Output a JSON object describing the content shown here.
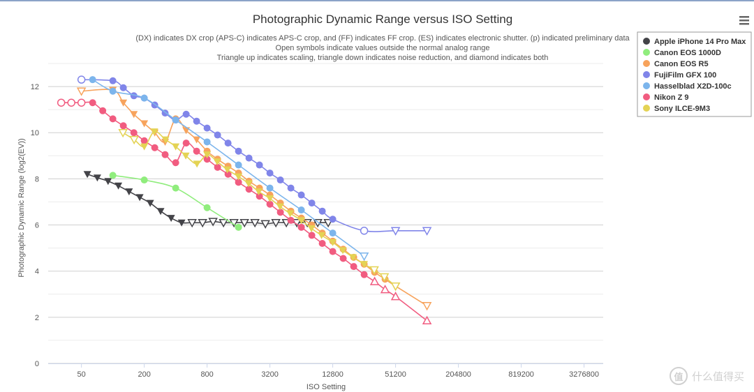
{
  "menu": {
    "icon": "hamburger-menu-icon"
  },
  "watermark": {
    "badge": "值",
    "text": "什么值得买"
  },
  "chart_data": {
    "type": "line",
    "title": "Photographic Dynamic Range versus ISO Setting",
    "subtitle_lines": [
      "(DX) indicates DX crop (APS-C) indicates APS-C crop, and (FF) indicates FF crop. (ES) indicates electronic shutter. (p) indicated preliminary data",
      "Open symbols indicate values outside the normal analog range",
      "Triangle up indicates scaling, triangle down indicates noise reduction, and diamond indicates both"
    ],
    "xlabel": "ISO Setting",
    "ylabel": "Photographic Dynamic Range (log2(EV))",
    "x_scale": "log2",
    "xlim": [
      24,
      5000000
    ],
    "ylim": [
      0,
      13
    ],
    "x_ticks": [
      50,
      200,
      800,
      3200,
      12800,
      51200,
      204800,
      819200,
      3276800
    ],
    "y_ticks": [
      0,
      2,
      4,
      6,
      8,
      10,
      12
    ],
    "grid": true,
    "legend_position": "top-right",
    "series": [
      {
        "name": "Apple iPhone 14 Pro Max",
        "color": "#434348",
        "points": [
          {
            "x": 57,
            "y": 8.2,
            "m": "tri-down"
          },
          {
            "x": 71,
            "y": 8.05,
            "m": "tri-down"
          },
          {
            "x": 90,
            "y": 7.9,
            "m": "tri-down"
          },
          {
            "x": 113,
            "y": 7.7,
            "m": "tri-down"
          },
          {
            "x": 143,
            "y": 7.45,
            "m": "tri-down"
          },
          {
            "x": 181,
            "y": 7.2,
            "m": "tri-down"
          },
          {
            "x": 228,
            "y": 6.95,
            "m": "tri-down"
          },
          {
            "x": 287,
            "y": 6.6,
            "m": "tri-down"
          },
          {
            "x": 362,
            "y": 6.3,
            "m": "tri-down"
          },
          {
            "x": 456,
            "y": 6.1,
            "m": "tri-down"
          },
          {
            "x": 575,
            "y": 6.1,
            "m": "tri-down-open"
          },
          {
            "x": 724,
            "y": 6.1,
            "m": "tri-down-open"
          },
          {
            "x": 912,
            "y": 6.15,
            "m": "tri-down-open"
          },
          {
            "x": 1149,
            "y": 6.1,
            "m": "tri-down-open"
          },
          {
            "x": 1448,
            "y": 6.1,
            "m": "tri-down-open"
          },
          {
            "x": 1825,
            "y": 6.1,
            "m": "tri-down-open"
          },
          {
            "x": 2299,
            "y": 6.1,
            "m": "tri-down-open"
          },
          {
            "x": 2897,
            "y": 6.05,
            "m": "tri-down-open"
          },
          {
            "x": 3650,
            "y": 6.1,
            "m": "tri-down-open"
          },
          {
            "x": 4598,
            "y": 6.1,
            "m": "tri-down-open"
          },
          {
            "x": 5793,
            "y": 6.1,
            "m": "tri-down-open"
          },
          {
            "x": 7298,
            "y": 6.1,
            "m": "tri-down-open"
          },
          {
            "x": 9195,
            "y": 6.1,
            "m": "tri-down-open"
          },
          {
            "x": 11585,
            "y": 6.1,
            "m": "tri-down-open"
          }
        ]
      },
      {
        "name": "Canon EOS 1000D",
        "color": "#90ed7d",
        "points": [
          {
            "x": 100,
            "y": 8.15,
            "m": "circle"
          },
          {
            "x": 200,
            "y": 7.95,
            "m": "circle"
          },
          {
            "x": 400,
            "y": 7.6,
            "m": "circle"
          },
          {
            "x": 800,
            "y": 6.75,
            "m": "circle"
          },
          {
            "x": 1600,
            "y": 5.9,
            "m": "circle"
          }
        ]
      },
      {
        "name": "Canon EOS R5",
        "color": "#f7a35c",
        "points": [
          {
            "x": 50,
            "y": 11.8,
            "m": "tri-down-open"
          },
          {
            "x": 100,
            "y": 11.85,
            "m": "tri-down"
          },
          {
            "x": 126,
            "y": 11.3,
            "m": "tri-down"
          },
          {
            "x": 159,
            "y": 10.8,
            "m": "tri-down"
          },
          {
            "x": 200,
            "y": 10.4,
            "m": "tri-down"
          },
          {
            "x": 252,
            "y": 10.0,
            "m": "tri-down"
          },
          {
            "x": 317,
            "y": 9.6,
            "m": "tri-down"
          },
          {
            "x": 400,
            "y": 10.6,
            "m": "circle"
          },
          {
            "x": 504,
            "y": 10.1,
            "m": "tri-down"
          },
          {
            "x": 635,
            "y": 9.7,
            "m": "tri-down"
          },
          {
            "x": 800,
            "y": 9.2,
            "m": "circle"
          },
          {
            "x": 1008,
            "y": 8.85,
            "m": "circle"
          },
          {
            "x": 1270,
            "y": 8.55,
            "m": "circle"
          },
          {
            "x": 1600,
            "y": 8.25,
            "m": "circle"
          },
          {
            "x": 2016,
            "y": 7.9,
            "m": "circle"
          },
          {
            "x": 2540,
            "y": 7.6,
            "m": "circle"
          },
          {
            "x": 3200,
            "y": 7.3,
            "m": "circle"
          },
          {
            "x": 4032,
            "y": 6.95,
            "m": "circle"
          },
          {
            "x": 5080,
            "y": 6.6,
            "m": "circle"
          },
          {
            "x": 6400,
            "y": 6.3,
            "m": "circle"
          },
          {
            "x": 8064,
            "y": 6.0,
            "m": "circle"
          },
          {
            "x": 10159,
            "y": 5.65,
            "m": "circle"
          },
          {
            "x": 12800,
            "y": 5.3,
            "m": "circle"
          },
          {
            "x": 16127,
            "y": 4.95,
            "m": "circle"
          },
          {
            "x": 20319,
            "y": 4.6,
            "m": "circle"
          },
          {
            "x": 25600,
            "y": 4.3,
            "m": "circle"
          },
          {
            "x": 32254,
            "y": 3.95,
            "m": "circle"
          },
          {
            "x": 40637,
            "y": 3.65,
            "m": "circle"
          },
          {
            "x": 51200,
            "y": 3.35,
            "m": "tri-down-open"
          },
          {
            "x": 102400,
            "y": 2.5,
            "m": "tri-down-open"
          }
        ]
      },
      {
        "name": "FujiFilm GFX 100",
        "color": "#8085e9",
        "points": [
          {
            "x": 50,
            "y": 12.3,
            "m": "circle-open"
          },
          {
            "x": 100,
            "y": 12.25,
            "m": "circle"
          },
          {
            "x": 126,
            "y": 11.95,
            "m": "circle"
          },
          {
            "x": 159,
            "y": 11.6,
            "m": "circle"
          },
          {
            "x": 200,
            "y": 11.5,
            "m": "circle"
          },
          {
            "x": 252,
            "y": 11.2,
            "m": "circle"
          },
          {
            "x": 317,
            "y": 10.85,
            "m": "circle"
          },
          {
            "x": 400,
            "y": 10.55,
            "m": "circle"
          },
          {
            "x": 504,
            "y": 10.8,
            "m": "circle"
          },
          {
            "x": 635,
            "y": 10.5,
            "m": "circle"
          },
          {
            "x": 800,
            "y": 10.2,
            "m": "circle"
          },
          {
            "x": 1008,
            "y": 9.9,
            "m": "circle"
          },
          {
            "x": 1270,
            "y": 9.55,
            "m": "circle"
          },
          {
            "x": 1600,
            "y": 9.2,
            "m": "circle"
          },
          {
            "x": 2016,
            "y": 8.9,
            "m": "circle"
          },
          {
            "x": 2540,
            "y": 8.6,
            "m": "circle"
          },
          {
            "x": 3200,
            "y": 8.25,
            "m": "circle"
          },
          {
            "x": 4032,
            "y": 7.95,
            "m": "circle"
          },
          {
            "x": 5080,
            "y": 7.6,
            "m": "circle"
          },
          {
            "x": 6400,
            "y": 7.3,
            "m": "circle"
          },
          {
            "x": 8064,
            "y": 6.95,
            "m": "circle"
          },
          {
            "x": 10159,
            "y": 6.6,
            "m": "circle"
          },
          {
            "x": 12800,
            "y": 6.25,
            "m": "circle"
          },
          {
            "x": 25600,
            "y": 5.75,
            "m": "circle-open"
          },
          {
            "x": 51200,
            "y": 5.75,
            "m": "tri-down-open"
          },
          {
            "x": 102400,
            "y": 5.75,
            "m": "tri-down-open"
          }
        ]
      },
      {
        "name": "Hasselblad X2D-100c",
        "color": "#7cb5ec",
        "points": [
          {
            "x": 64,
            "y": 12.3,
            "m": "circle"
          },
          {
            "x": 100,
            "y": 11.8,
            "m": "circle"
          },
          {
            "x": 200,
            "y": 11.5,
            "m": "circle"
          },
          {
            "x": 400,
            "y": 10.55,
            "m": "circle"
          },
          {
            "x": 800,
            "y": 9.6,
            "m": "circle"
          },
          {
            "x": 1600,
            "y": 8.6,
            "m": "circle"
          },
          {
            "x": 3200,
            "y": 7.6,
            "m": "circle"
          },
          {
            "x": 6400,
            "y": 6.65,
            "m": "circle"
          },
          {
            "x": 12800,
            "y": 5.65,
            "m": "circle"
          },
          {
            "x": 25600,
            "y": 4.65,
            "m": "tri-down-open"
          }
        ]
      },
      {
        "name": "Nikon Z 9",
        "color": "#f15c80",
        "points": [
          {
            "x": 32,
            "y": 11.3,
            "m": "circle-open"
          },
          {
            "x": 40,
            "y": 11.3,
            "m": "circle-open"
          },
          {
            "x": 50,
            "y": 11.3,
            "m": "circle-open"
          },
          {
            "x": 64,
            "y": 11.3,
            "m": "circle"
          },
          {
            "x": 80,
            "y": 10.95,
            "m": "circle"
          },
          {
            "x": 100,
            "y": 10.6,
            "m": "circle"
          },
          {
            "x": 126,
            "y": 10.3,
            "m": "circle"
          },
          {
            "x": 159,
            "y": 10.0,
            "m": "circle"
          },
          {
            "x": 200,
            "y": 9.65,
            "m": "circle"
          },
          {
            "x": 252,
            "y": 9.35,
            "m": "circle"
          },
          {
            "x": 317,
            "y": 9.05,
            "m": "circle"
          },
          {
            "x": 400,
            "y": 8.7,
            "m": "circle"
          },
          {
            "x": 504,
            "y": 9.55,
            "m": "circle"
          },
          {
            "x": 635,
            "y": 9.2,
            "m": "circle"
          },
          {
            "x": 800,
            "y": 8.85,
            "m": "circle"
          },
          {
            "x": 1008,
            "y": 8.5,
            "m": "circle"
          },
          {
            "x": 1270,
            "y": 8.2,
            "m": "circle"
          },
          {
            "x": 1600,
            "y": 7.85,
            "m": "circle"
          },
          {
            "x": 2016,
            "y": 7.55,
            "m": "circle"
          },
          {
            "x": 2540,
            "y": 7.25,
            "m": "circle"
          },
          {
            "x": 3200,
            "y": 6.9,
            "m": "circle"
          },
          {
            "x": 4032,
            "y": 6.55,
            "m": "circle"
          },
          {
            "x": 5080,
            "y": 6.2,
            "m": "circle"
          },
          {
            "x": 6400,
            "y": 5.9,
            "m": "circle"
          },
          {
            "x": 8064,
            "y": 5.55,
            "m": "circle"
          },
          {
            "x": 10159,
            "y": 5.2,
            "m": "circle"
          },
          {
            "x": 12800,
            "y": 4.85,
            "m": "circle"
          },
          {
            "x": 16127,
            "y": 4.55,
            "m": "circle"
          },
          {
            "x": 20319,
            "y": 4.2,
            "m": "circle"
          },
          {
            "x": 25600,
            "y": 3.85,
            "m": "circle"
          },
          {
            "x": 32254,
            "y": 3.55,
            "m": "tri-up-open"
          },
          {
            "x": 40637,
            "y": 3.2,
            "m": "tri-up-open"
          },
          {
            "x": 51200,
            "y": 2.9,
            "m": "tri-up-open"
          },
          {
            "x": 102400,
            "y": 1.85,
            "m": "tri-up-open"
          }
        ]
      },
      {
        "name": "Sony ILCE-9M3",
        "color": "#e4d354",
        "points": [
          {
            "x": 125,
            "y": 10.0,
            "m": "tri-down-open"
          },
          {
            "x": 160,
            "y": 9.7,
            "m": "tri-down-open"
          },
          {
            "x": 200,
            "y": 9.4,
            "m": "tri-down"
          },
          {
            "x": 250,
            "y": 10.05,
            "m": "tri-down"
          },
          {
            "x": 320,
            "y": 9.7,
            "m": "tri-down"
          },
          {
            "x": 400,
            "y": 9.4,
            "m": "tri-down"
          },
          {
            "x": 500,
            "y": 9.0,
            "m": "tri-down"
          },
          {
            "x": 640,
            "y": 8.65,
            "m": "tri-down"
          },
          {
            "x": 800,
            "y": 9.05,
            "m": "tri-down"
          },
          {
            "x": 1000,
            "y": 8.75,
            "m": "tri-down"
          },
          {
            "x": 1250,
            "y": 8.4,
            "m": "tri-down"
          },
          {
            "x": 1600,
            "y": 8.1,
            "m": "tri-down"
          },
          {
            "x": 2000,
            "y": 7.8,
            "m": "tri-down"
          },
          {
            "x": 2500,
            "y": 7.45,
            "m": "tri-down"
          },
          {
            "x": 3200,
            "y": 7.15,
            "m": "tri-down"
          },
          {
            "x": 4000,
            "y": 6.8,
            "m": "tri-down"
          },
          {
            "x": 5000,
            "y": 6.5,
            "m": "tri-down"
          },
          {
            "x": 6400,
            "y": 6.2,
            "m": "tri-down"
          },
          {
            "x": 8000,
            "y": 5.85,
            "m": "tri-down"
          },
          {
            "x": 10000,
            "y": 5.55,
            "m": "tri-down"
          },
          {
            "x": 12800,
            "y": 5.25,
            "m": "tri-down"
          },
          {
            "x": 16000,
            "y": 4.9,
            "m": "tri-down"
          },
          {
            "x": 20000,
            "y": 4.6,
            "m": "tri-down"
          },
          {
            "x": 25600,
            "y": 4.3,
            "m": "tri-down"
          },
          {
            "x": 32000,
            "y": 4.05,
            "m": "tri-down-open"
          },
          {
            "x": 40000,
            "y": 3.75,
            "m": "tri-down-open"
          },
          {
            "x": 51200,
            "y": 3.35,
            "m": "tri-down-open"
          }
        ]
      }
    ]
  }
}
